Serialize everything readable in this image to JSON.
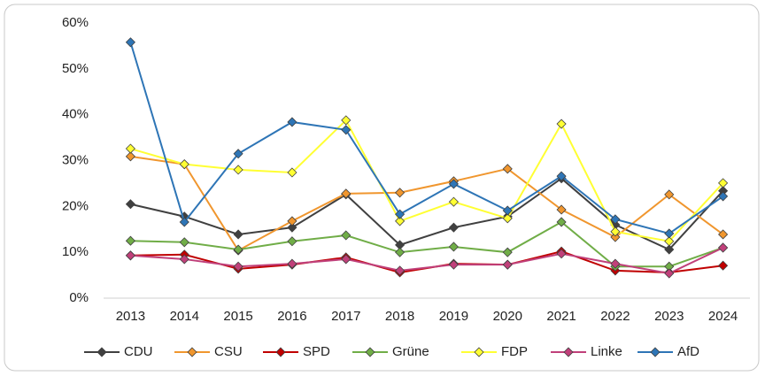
{
  "chart_data": {
    "type": "line",
    "categories": [
      "2013",
      "2014",
      "2015",
      "2016",
      "2017",
      "2018",
      "2019",
      "2020",
      "2021",
      "2022",
      "2023",
      "2024"
    ],
    "ylim": [
      0,
      60
    ],
    "yticks": [
      {
        "value": 0,
        "label": "0%"
      },
      {
        "value": 10,
        "label": "10%"
      },
      {
        "value": 20,
        "label": "20%"
      },
      {
        "value": 30,
        "label": "30%"
      },
      {
        "value": 40,
        "label": "40%"
      },
      {
        "value": 50,
        "label": "50%"
      },
      {
        "value": 60,
        "label": "60%"
      }
    ],
    "grid": false,
    "legend": "bottom",
    "series": [
      {
        "name": "CDU",
        "color": "#404040",
        "values": [
          20.5,
          17.8,
          13.9,
          15.4,
          22.6,
          11.6,
          15.4,
          17.8,
          26.1,
          16,
          10.6,
          23.4
        ]
      },
      {
        "name": "CSU",
        "color": "#f0962e",
        "values": [
          30.9,
          29.2,
          10.4,
          16.8,
          22.8,
          23,
          25.5,
          28.2,
          19.3,
          13.3,
          22.6,
          13.9
        ]
      },
      {
        "name": "SPD",
        "color": "#c00000",
        "values": [
          9.3,
          9.5,
          6.4,
          7.3,
          8.9,
          5.6,
          7.5,
          7.3,
          10.2,
          6,
          5.6,
          7.1
        ]
      },
      {
        "name": "Grüne",
        "color": "#70ad47",
        "values": [
          12.5,
          12.2,
          10.6,
          12.4,
          13.7,
          10,
          11.2,
          10,
          16.6,
          6.9,
          6.9,
          11
        ]
      },
      {
        "name": "FDP",
        "color": "#ffff33",
        "values": [
          32.6,
          29.2,
          28,
          27.4,
          38.8,
          16.8,
          21,
          17.4,
          38,
          14.5,
          12.4,
          25.1
        ]
      },
      {
        "name": "Linke",
        "color": "#c0407a",
        "values": [
          9.3,
          8.5,
          6.9,
          7.5,
          8.5,
          6,
          7.3,
          7.3,
          9.7,
          7.5,
          5.4,
          11
        ]
      },
      {
        "name": "AfD",
        "color": "#2e75b6",
        "values": [
          55.8,
          16.6,
          31.5,
          38.4,
          36.7,
          18.3,
          24.9,
          19.1,
          26.6,
          17.2,
          14.1,
          22.2
        ]
      }
    ]
  }
}
